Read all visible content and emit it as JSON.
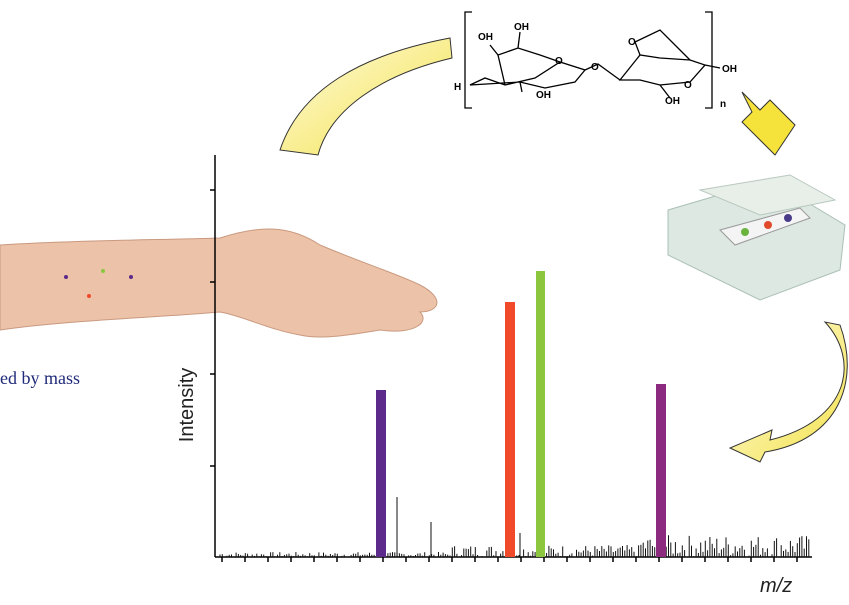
{
  "labels": {
    "y_axis": "Intensity",
    "x_axis": "m/z",
    "caption_fragment": "ed by mass"
  },
  "structure": {
    "atoms": [
      "OH",
      "OH",
      "O",
      "O",
      "OH",
      "O",
      "O",
      "OH",
      "OH",
      "H",
      "n"
    ]
  }
}
